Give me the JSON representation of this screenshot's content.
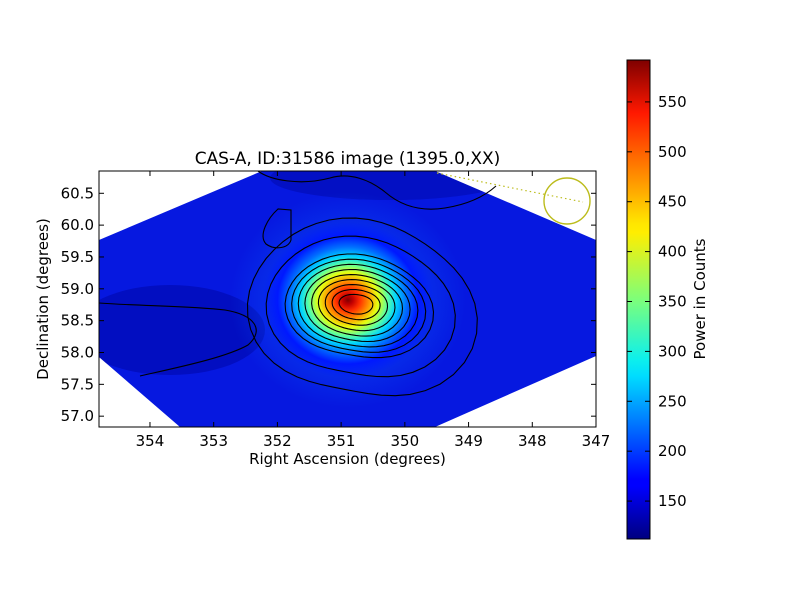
{
  "chart_data": {
    "type": "heatmap",
    "title": "CAS-A, ID:31586 image (1395.0,XX)",
    "xlabel": "Right Ascension (degrees)",
    "ylabel": "Declination (degrees)",
    "xlim": [
      354.8,
      347.0
    ],
    "ylim": [
      56.83,
      60.85
    ],
    "x_ticks": [
      354,
      353,
      352,
      351,
      350,
      349,
      348,
      347
    ],
    "x_tick_labels": [
      "354",
      "353",
      "352",
      "351",
      "350",
      "349",
      "348",
      "347"
    ],
    "y_ticks": [
      57.0,
      57.5,
      58.0,
      58.5,
      59.0,
      59.5,
      60.0,
      60.5
    ],
    "y_tick_labels": [
      "57.0",
      "57.5",
      "58.0",
      "58.5",
      "59.0",
      "59.5",
      "60.0",
      "60.5"
    ],
    "colormap": "jet",
    "grid": false,
    "peak": {
      "ra": 350.8,
      "dec": 58.8,
      "value": 590
    },
    "background_level": 150,
    "contours": true,
    "beam_marker": {
      "ra": 347.45,
      "dec": 60.38,
      "color": "#bcbc1c"
    },
    "colorbar": {
      "label": "Power in Counts",
      "min": 112,
      "max": 592,
      "ticks": [
        150,
        200,
        250,
        300,
        350,
        400,
        450,
        500,
        550
      ],
      "tick_labels": [
        "150",
        "200",
        "250",
        "300",
        "350",
        "400",
        "450",
        "500",
        "550"
      ]
    }
  }
}
